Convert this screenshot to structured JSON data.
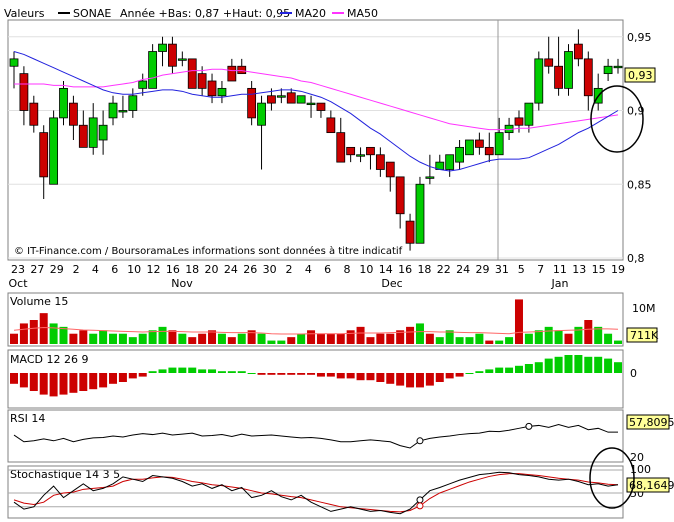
{
  "header": {
    "valeurs_label": "Valeurs",
    "stock_name": "SONAE",
    "annee_text": "Année +Bas: 0,87 +Haut: 0,95",
    "ma20_label": "MA20",
    "ma50_label": "MA50"
  },
  "colors": {
    "up": "#00cc00",
    "down": "#cc0000",
    "ma20": "#2222dd",
    "ma50": "#ff33ff",
    "grid": "#808080",
    "volume_ma": "#ff6666",
    "stoch_d": "#cc0000"
  },
  "chart_data": [
    {
      "type": "candlestick",
      "title": "",
      "source_text": "© IT-Finance.com / BoursoramaLes informations sont données à titre indicatif",
      "ylim": [
        0.8,
        0.96
      ],
      "y_ticks": [
        "0,95",
        "0,9",
        "0,85",
        "0,8"
      ],
      "y_tick_values": [
        0.95,
        0.9,
        0.85,
        0.8
      ],
      "last_price_label": "0,93",
      "x_day_labels": [
        "23",
        "27",
        "29",
        "2",
        "4",
        "6",
        "10",
        "12",
        "16",
        "18",
        "20",
        "24",
        "26",
        "30",
        "2",
        "4",
        "6",
        "8",
        "10",
        "14",
        "16",
        "18",
        "22",
        "24",
        "29",
        "31",
        "5",
        "7",
        "11",
        "13",
        "15",
        "19"
      ],
      "x_month_labels": [
        "Oct",
        "Nov",
        "Dec",
        "Jan"
      ],
      "candles": [
        {
          "o": 0.93,
          "h": 0.94,
          "l": 0.915,
          "c": 0.935
        },
        {
          "o": 0.925,
          "h": 0.93,
          "l": 0.89,
          "c": 0.9
        },
        {
          "o": 0.905,
          "h": 0.91,
          "l": 0.885,
          "c": 0.89
        },
        {
          "o": 0.885,
          "h": 0.89,
          "l": 0.84,
          "c": 0.855
        },
        {
          "o": 0.85,
          "h": 0.9,
          "l": 0.85,
          "c": 0.895
        },
        {
          "o": 0.895,
          "h": 0.92,
          "l": 0.89,
          "c": 0.915
        },
        {
          "o": 0.905,
          "h": 0.91,
          "l": 0.88,
          "c": 0.89
        },
        {
          "o": 0.89,
          "h": 0.9,
          "l": 0.875,
          "c": 0.875
        },
        {
          "o": 0.875,
          "h": 0.905,
          "l": 0.87,
          "c": 0.895
        },
        {
          "o": 0.88,
          "h": 0.9,
          "l": 0.87,
          "c": 0.89
        },
        {
          "o": 0.895,
          "h": 0.91,
          "l": 0.89,
          "c": 0.905
        },
        {
          "o": 0.9,
          "h": 0.91,
          "l": 0.895,
          "c": 0.9
        },
        {
          "o": 0.9,
          "h": 0.915,
          "l": 0.895,
          "c": 0.91
        },
        {
          "o": 0.915,
          "h": 0.925,
          "l": 0.91,
          "c": 0.92
        },
        {
          "o": 0.915,
          "h": 0.945,
          "l": 0.915,
          "c": 0.94
        },
        {
          "o": 0.94,
          "h": 0.95,
          "l": 0.93,
          "c": 0.945
        },
        {
          "o": 0.945,
          "h": 0.95,
          "l": 0.925,
          "c": 0.93
        },
        {
          "o": 0.935,
          "h": 0.94,
          "l": 0.93,
          "c": 0.935
        },
        {
          "o": 0.935,
          "h": 0.935,
          "l": 0.915,
          "c": 0.915
        },
        {
          "o": 0.925,
          "h": 0.93,
          "l": 0.91,
          "c": 0.915
        },
        {
          "o": 0.92,
          "h": 0.925,
          "l": 0.905,
          "c": 0.91
        },
        {
          "o": 0.91,
          "h": 0.92,
          "l": 0.905,
          "c": 0.915
        },
        {
          "o": 0.93,
          "h": 0.935,
          "l": 0.92,
          "c": 0.92
        },
        {
          "o": 0.93,
          "h": 0.935,
          "l": 0.925,
          "c": 0.925
        },
        {
          "o": 0.915,
          "h": 0.92,
          "l": 0.89,
          "c": 0.895
        },
        {
          "o": 0.89,
          "h": 0.91,
          "l": 0.86,
          "c": 0.905
        },
        {
          "o": 0.91,
          "h": 0.915,
          "l": 0.9,
          "c": 0.905
        },
        {
          "o": 0.91,
          "h": 0.915,
          "l": 0.905,
          "c": 0.91
        },
        {
          "o": 0.912,
          "h": 0.915,
          "l": 0.905,
          "c": 0.905
        },
        {
          "o": 0.905,
          "h": 0.91,
          "l": 0.905,
          "c": 0.91
        },
        {
          "o": 0.905,
          "h": 0.91,
          "l": 0.895,
          "c": 0.905
        },
        {
          "o": 0.905,
          "h": 0.905,
          "l": 0.895,
          "c": 0.9
        },
        {
          "o": 0.895,
          "h": 0.9,
          "l": 0.885,
          "c": 0.885
        },
        {
          "o": 0.885,
          "h": 0.895,
          "l": 0.865,
          "c": 0.865
        },
        {
          "o": 0.875,
          "h": 0.875,
          "l": 0.865,
          "c": 0.87
        },
        {
          "o": 0.87,
          "h": 0.875,
          "l": 0.865,
          "c": 0.87
        },
        {
          "o": 0.875,
          "h": 0.875,
          "l": 0.86,
          "c": 0.87
        },
        {
          "o": 0.87,
          "h": 0.875,
          "l": 0.855,
          "c": 0.86
        },
        {
          "o": 0.865,
          "h": 0.865,
          "l": 0.845,
          "c": 0.855
        },
        {
          "o": 0.855,
          "h": 0.855,
          "l": 0.82,
          "c": 0.83
        },
        {
          "o": 0.825,
          "h": 0.83,
          "l": 0.805,
          "c": 0.81
        },
        {
          "o": 0.81,
          "h": 0.855,
          "l": 0.81,
          "c": 0.85
        },
        {
          "o": 0.855,
          "h": 0.87,
          "l": 0.85,
          "c": 0.855
        },
        {
          "o": 0.86,
          "h": 0.87,
          "l": 0.86,
          "c": 0.865
        },
        {
          "o": 0.86,
          "h": 0.87,
          "l": 0.855,
          "c": 0.87
        },
        {
          "o": 0.865,
          "h": 0.88,
          "l": 0.86,
          "c": 0.875
        },
        {
          "o": 0.87,
          "h": 0.88,
          "l": 0.87,
          "c": 0.88
        },
        {
          "o": 0.88,
          "h": 0.885,
          "l": 0.87,
          "c": 0.875
        },
        {
          "o": 0.875,
          "h": 0.885,
          "l": 0.865,
          "c": 0.87
        },
        {
          "o": 0.87,
          "h": 0.895,
          "l": 0.87,
          "c": 0.885
        },
        {
          "o": 0.885,
          "h": 0.895,
          "l": 0.88,
          "c": 0.89
        },
        {
          "o": 0.895,
          "h": 0.9,
          "l": 0.885,
          "c": 0.89
        },
        {
          "o": 0.89,
          "h": 0.905,
          "l": 0.885,
          "c": 0.905
        },
        {
          "o": 0.905,
          "h": 0.94,
          "l": 0.9,
          "c": 0.935
        },
        {
          "o": 0.935,
          "h": 0.95,
          "l": 0.925,
          "c": 0.93
        },
        {
          "o": 0.93,
          "h": 0.95,
          "l": 0.91,
          "c": 0.915
        },
        {
          "o": 0.915,
          "h": 0.945,
          "l": 0.91,
          "c": 0.94
        },
        {
          "o": 0.945,
          "h": 0.955,
          "l": 0.93,
          "c": 0.935
        },
        {
          "o": 0.935,
          "h": 0.94,
          "l": 0.9,
          "c": 0.91
        },
        {
          "o": 0.905,
          "h": 0.925,
          "l": 0.9,
          "c": 0.915
        },
        {
          "o": 0.925,
          "h": 0.935,
          "l": 0.92,
          "c": 0.93
        },
        {
          "o": 0.93,
          "h": 0.935,
          "l": 0.925,
          "c": 0.93
        }
      ],
      "ma20": [
        0.94,
        0.938,
        0.935,
        0.932,
        0.929,
        0.926,
        0.923,
        0.92,
        0.917,
        0.914,
        0.912,
        0.911,
        0.911,
        0.912,
        0.913,
        0.914,
        0.914,
        0.913,
        0.911,
        0.91,
        0.909,
        0.909,
        0.91,
        0.911,
        0.911,
        0.912,
        0.913,
        0.914,
        0.914,
        0.913,
        0.911,
        0.909,
        0.906,
        0.902,
        0.898,
        0.893,
        0.888,
        0.884,
        0.879,
        0.874,
        0.869,
        0.865,
        0.862,
        0.86,
        0.859,
        0.86,
        0.862,
        0.864,
        0.866,
        0.867,
        0.867,
        0.867,
        0.868,
        0.871,
        0.874,
        0.877,
        0.881,
        0.885,
        0.888,
        0.892,
        0.896,
        0.9
      ],
      "ma50": [
        0.918,
        0.918,
        0.918,
        0.918,
        0.917,
        0.917,
        0.916,
        0.916,
        0.916,
        0.916,
        0.917,
        0.918,
        0.919,
        0.921,
        0.922,
        0.924,
        0.925,
        0.926,
        0.927,
        0.927,
        0.928,
        0.928,
        0.927,
        0.927,
        0.926,
        0.925,
        0.924,
        0.923,
        0.922,
        0.92,
        0.919,
        0.917,
        0.915,
        0.913,
        0.911,
        0.909,
        0.907,
        0.905,
        0.903,
        0.901,
        0.899,
        0.897,
        0.895,
        0.893,
        0.891,
        0.89,
        0.889,
        0.888,
        0.887,
        0.887,
        0.887,
        0.888,
        0.888,
        0.889,
        0.89,
        0.891,
        0.892,
        0.893,
        0.894,
        0.895,
        0.896,
        0.897
      ]
    },
    {
      "type": "bar",
      "title": "Volume 15",
      "y_ticks": [
        "10M"
      ],
      "y_tick_values": [
        10
      ],
      "ylim": [
        0,
        14
      ],
      "last_value_label": "711K",
      "values": [
        3,
        6,
        7,
        9,
        6,
        5,
        3,
        4,
        3,
        4,
        3,
        3,
        2,
        3,
        4,
        5,
        4,
        3,
        2,
        3,
        4,
        3,
        2,
        3,
        4,
        3,
        1,
        1,
        2,
        3,
        4,
        3,
        3,
        3,
        4,
        5,
        2,
        3,
        3,
        4,
        5,
        6,
        3,
        2,
        4,
        2,
        2,
        3,
        1,
        1,
        2,
        13,
        3,
        4,
        5,
        4,
        3,
        5,
        7,
        5,
        3,
        1
      ],
      "up": [
        false,
        false,
        false,
        false,
        true,
        true,
        false,
        false,
        true,
        true,
        true,
        true,
        true,
        true,
        true,
        true,
        false,
        true,
        false,
        false,
        false,
        true,
        false,
        true,
        false,
        true,
        true,
        true,
        false,
        true,
        false,
        false,
        false,
        false,
        false,
        false,
        false,
        false,
        false,
        false,
        false,
        true,
        false,
        true,
        true,
        true,
        true,
        true,
        false,
        true,
        true,
        false,
        true,
        true,
        true,
        true,
        false,
        true,
        false,
        true,
        true,
        true
      ],
      "ma": [
        4,
        4.3,
        4.6,
        4.8,
        4.7,
        4.5,
        4.3,
        4.1,
        4,
        3.9,
        3.8,
        3.7,
        3.6,
        3.5,
        3.6,
        3.7,
        3.7,
        3.6,
        3.5,
        3.5,
        3.5,
        3.4,
        3.3,
        3.3,
        3.3,
        3.2,
        3,
        2.9,
        2.9,
        2.9,
        3,
        3,
        3,
        3,
        3.1,
        3.2,
        3.2,
        3.2,
        3.3,
        3.4,
        3.5,
        3.6,
        3.6,
        3.5,
        3.5,
        3.4,
        3.3,
        3.3,
        3.2,
        3.1,
        3,
        3.4,
        3.5,
        3.6,
        3.8,
        3.9,
        4,
        4.1,
        4.3,
        4.4,
        4.4,
        4.3
      ]
    },
    {
      "type": "bar",
      "title": "MACD 12 26 9",
      "y_ticks": [
        "0"
      ],
      "y_tick_values": [
        0
      ],
      "values": [
        -0.6,
        -0.8,
        -1.0,
        -1.2,
        -1.3,
        -1.2,
        -1.1,
        -1.0,
        -0.9,
        -0.8,
        -0.6,
        -0.5,
        -0.3,
        -0.2,
        0.1,
        0.2,
        0.3,
        0.3,
        0.3,
        0.2,
        0.2,
        0.1,
        0.1,
        0.1,
        0,
        -0.1,
        -0.1,
        -0.1,
        -0.1,
        -0.1,
        -0.1,
        -0.2,
        -0.2,
        -0.3,
        -0.3,
        -0.4,
        -0.4,
        -0.5,
        -0.6,
        -0.7,
        -0.8,
        -0.8,
        -0.7,
        -0.5,
        -0.3,
        -0.2,
        0,
        0.1,
        0.2,
        0.3,
        0.3,
        0.4,
        0.5,
        0.6,
        0.8,
        0.9,
        1.0,
        1.0,
        0.9,
        0.9,
        0.8,
        0.6
      ]
    },
    {
      "type": "line",
      "title": "RSI 14",
      "ylim": [
        0,
        100
      ],
      "y_ticks": [
        "20"
      ],
      "y_tick_values": [
        20
      ],
      "last_value_label": "57,8095",
      "values": [
        52,
        38,
        40,
        44,
        40,
        45,
        38,
        43,
        46,
        47,
        50,
        48,
        52,
        55,
        53,
        56,
        52,
        54,
        56,
        50,
        51,
        53,
        49,
        54,
        50,
        51,
        52,
        50,
        48,
        46,
        47,
        45,
        42,
        38,
        38,
        40,
        42,
        40,
        38,
        30,
        25,
        40,
        45,
        48,
        50,
        53,
        55,
        56,
        60,
        59,
        62,
        66,
        70,
        72,
        68,
        74,
        68,
        72,
        63,
        66,
        58,
        58
      ],
      "marker_indices": [
        41,
        52
      ]
    },
    {
      "type": "line",
      "title": "Stochastique 14 3 5",
      "ylim": [
        0,
        100
      ],
      "y_ticks": [
        "100",
        "50"
      ],
      "y_tick_values": [
        100,
        50
      ],
      "last_value_label": "68,1649",
      "series": [
        {
          "values": [
            30,
            15,
            20,
            45,
            65,
            40,
            55,
            70,
            55,
            60,
            70,
            85,
            80,
            75,
            88,
            85,
            82,
            75,
            65,
            70,
            60,
            68,
            55,
            62,
            40,
            45,
            55,
            42,
            35,
            45,
            30,
            20,
            10,
            15,
            20,
            15,
            10,
            12,
            8,
            5,
            15,
            35,
            55,
            62,
            70,
            78,
            84,
            90,
            92,
            95,
            94,
            90,
            88,
            85,
            80,
            78,
            80,
            75,
            68,
            70,
            65,
            68
          ]
        },
        {
          "values": [
            35,
            28,
            25,
            30,
            45,
            50,
            52,
            58,
            60,
            62,
            65,
            75,
            80,
            80,
            83,
            85,
            84,
            80,
            75,
            72,
            68,
            66,
            63,
            60,
            55,
            50,
            48,
            45,
            42,
            40,
            35,
            30,
            25,
            20,
            18,
            16,
            14,
            12,
            10,
            9,
            12,
            22,
            38,
            50,
            58,
            66,
            74,
            80,
            86,
            90,
            92,
            92,
            90,
            88,
            85,
            82,
            80,
            78,
            74,
            72,
            69,
            68
          ]
        }
      ],
      "marker_indices": [
        41,
        41
      ]
    }
  ]
}
